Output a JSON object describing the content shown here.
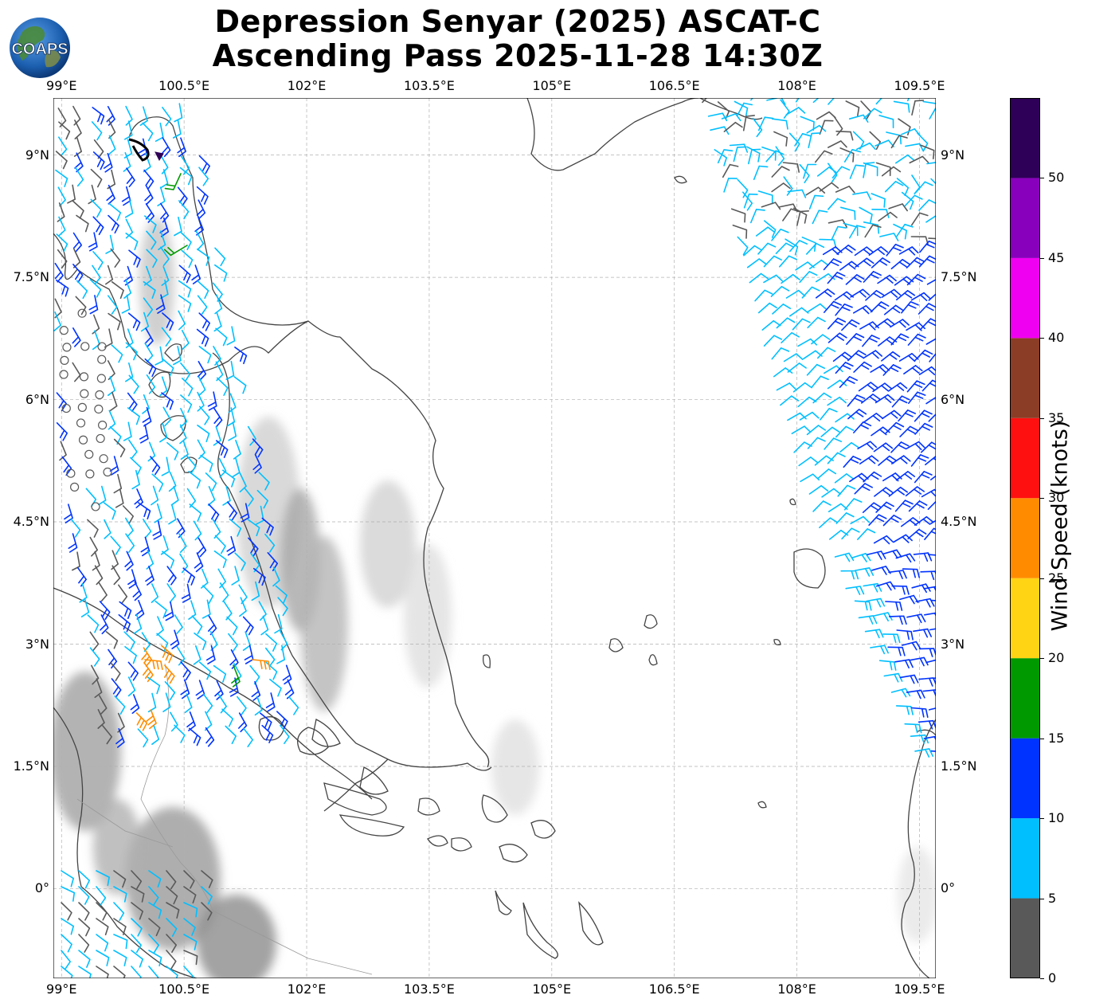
{
  "title": {
    "line1": "Depression Senyar (2025) ASCAT-C",
    "line2": "Ascending Pass 2025-11-28 14:30Z"
  },
  "logo": {
    "text": "COAPS",
    "icon": "globe-logo-icon"
  },
  "map": {
    "lon_labels": [
      "99°E",
      "100.5°E",
      "102°E",
      "103.5°E",
      "105°E",
      "106.5°E",
      "108°E",
      "109.5°E"
    ],
    "lat_labels": [
      "9°N",
      "7.5°N",
      "6°N",
      "4.5°N",
      "3°N",
      "1.5°N",
      "0°"
    ],
    "lon_range": [
      98.9,
      109.7
    ],
    "lat_range": [
      -1.1,
      9.7
    ],
    "gridlines": true
  },
  "colorbar": {
    "title": "Wind Speed (knots)",
    "ticks": [
      "0",
      "5",
      "10",
      "15",
      "20",
      "25",
      "30",
      "35",
      "40",
      "45",
      "50"
    ],
    "colors": [
      "#595959",
      "#00bfff",
      "#0033ff",
      "#009900",
      "#ffd414",
      "#ff8c00",
      "#ff1010",
      "#8b3d26",
      "#f000f0",
      "#8800bb",
      "#2e0057"
    ],
    "max": 55
  },
  "colors": {
    "calm": "#595959",
    "light": "#00bfff",
    "moderate": "#0033ff",
    "fresh": "#009900",
    "strong": "#ff8c00",
    "center": "#2e0057",
    "coast": "#444444",
    "grid": "#b0b0b0"
  }
}
